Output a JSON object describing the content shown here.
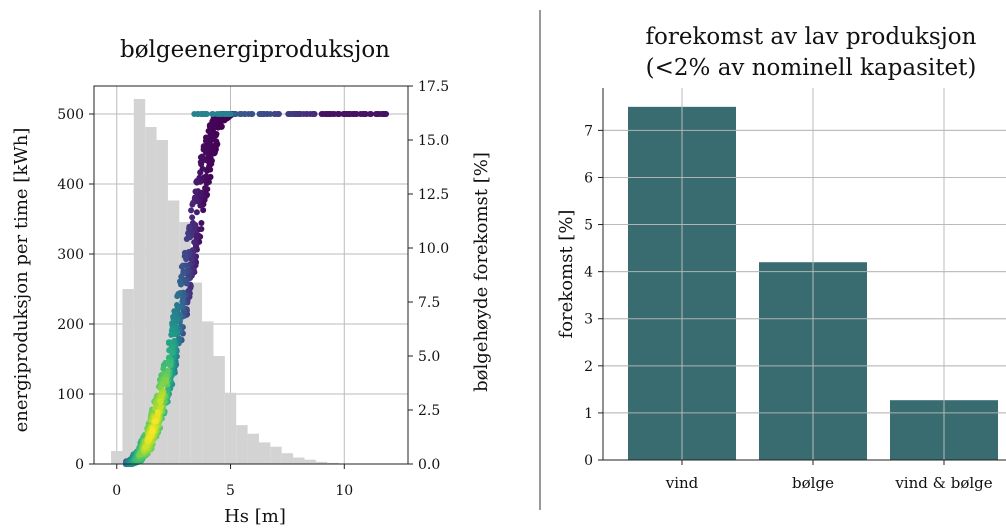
{
  "chart_data": [
    {
      "type": "scatter",
      "title": "bølgeenergiproduksjon",
      "xlabel": "Hs [m]",
      "ylabel": "energiproduksjon per time [kWh]",
      "ylabel_right": "bølgehøyde forekomst [%]",
      "xlim": [
        -1,
        12.8
      ],
      "ylim": [
        0,
        540
      ],
      "ylim_right": [
        0,
        17.5
      ],
      "x_ticks": [
        "0",
        "5",
        "10"
      ],
      "y_ticks": [
        "0",
        "100",
        "200",
        "300",
        "400",
        "500"
      ],
      "y_right_ticks": [
        "0.0",
        "2.5",
        "5.0",
        "7.5",
        "10.0",
        "12.5",
        "15.0",
        "17.5"
      ],
      "grid": true,
      "colormap": "viridis",
      "histogram": {
        "bin_start": -0.25,
        "bin_width": 0.5,
        "values": [
          0.6,
          8.1,
          16.9,
          15.6,
          15.0,
          12.2,
          11.2,
          8.4,
          6.6,
          5.0,
          3.3,
          1.8,
          1.4,
          1.0,
          0.8,
          0.5,
          0.3,
          0.2,
          0.1,
          0.05
        ],
        "color": "#d3d3d3"
      },
      "power_curve": {
        "hs": [
          0.4,
          0.8,
          1.2,
          1.6,
          2.0,
          2.4,
          2.8,
          3.2,
          3.6,
          4.0,
          4.4,
          4.8,
          5.2,
          12.0
        ],
        "kwh": [
          0,
          5,
          20,
          50,
          95,
          150,
          215,
          290,
          370,
          440,
          490,
          500,
          500,
          500
        ]
      }
    },
    {
      "type": "bar",
      "title": "forekomst av lav produksjon\n(<2% av nominell kapasitet)",
      "xlabel": "",
      "ylabel": "forekomst [%]",
      "categories": [
        "vind",
        "bølge",
        "vind & bølge"
      ],
      "values": [
        7.5,
        4.2,
        1.27
      ],
      "ylim": [
        0,
        7.9
      ],
      "y_ticks": [
        "0",
        "1",
        "2",
        "3",
        "4",
        "5",
        "6",
        "7"
      ],
      "grid": true,
      "color": "#386c70"
    }
  ]
}
